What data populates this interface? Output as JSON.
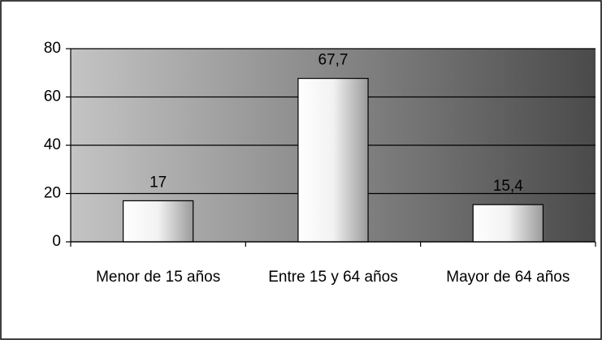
{
  "chart_data": {
    "type": "bar",
    "categories": [
      "Menor de 15 años",
      "Entre 15 y 64 años",
      "Mayor de 64 años"
    ],
    "values": [
      17,
      67.7,
      15.4
    ],
    "value_labels": [
      "17",
      "67,7",
      "15,4"
    ],
    "ylim": [
      0,
      80
    ],
    "yticks": [
      0,
      20,
      40,
      60,
      80
    ],
    "grid": true
  }
}
